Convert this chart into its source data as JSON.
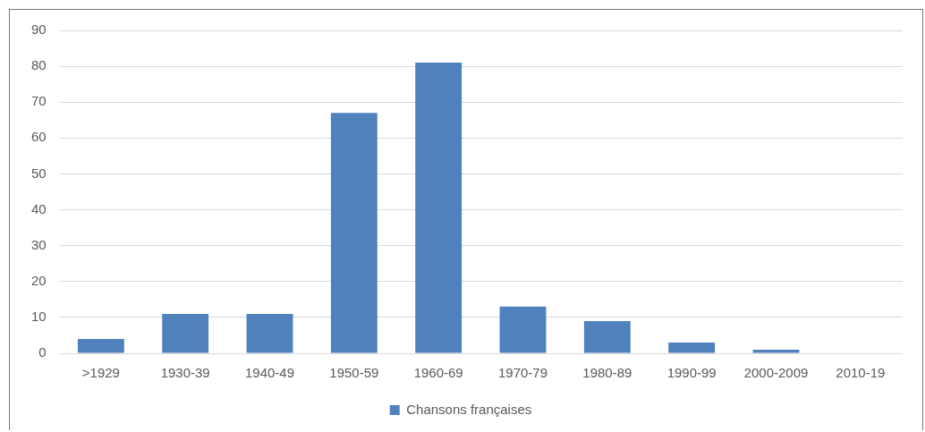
{
  "chart_data": {
    "type": "bar",
    "categories": [
      ">1929",
      "1930-39",
      "1940-49",
      "1950-59",
      "1960-69",
      "1970-79",
      "1980-89",
      "1990-99",
      "2000-2009",
      "2010-19"
    ],
    "series": [
      {
        "name": "Chansons françaises",
        "color": "#4f81bd",
        "values": [
          4,
          11,
          11,
          67,
          81,
          13,
          9,
          3,
          1,
          0
        ]
      }
    ],
    "ylim": [
      0,
      90
    ],
    "yticks": [
      0,
      10,
      20,
      30,
      40,
      50,
      60,
      70,
      80,
      90
    ],
    "grid": "y",
    "legend": "bottom"
  }
}
